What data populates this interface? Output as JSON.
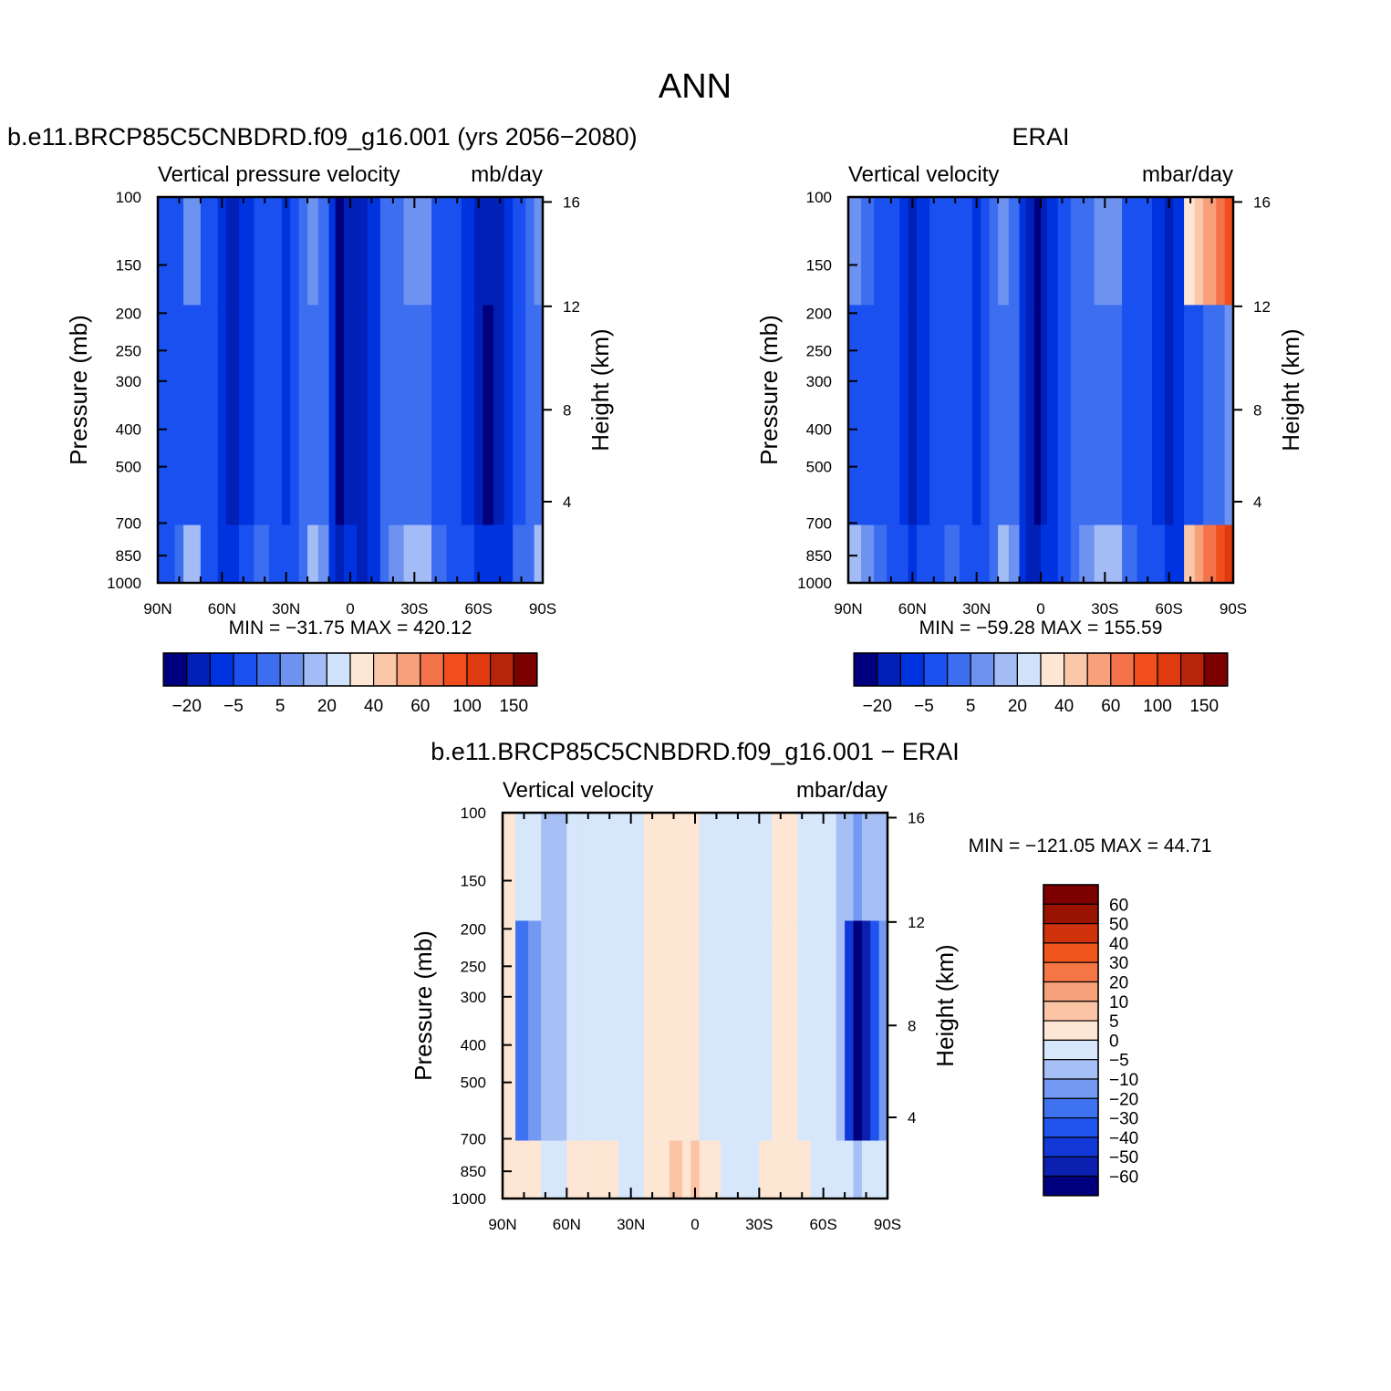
{
  "figure": {
    "main_title": "ANN",
    "colors": {
      "main_scale": [
        "#00007f",
        "#0020b8",
        "#0033e0",
        "#1a50f0",
        "#3d6ef0",
        "#6d92f0",
        "#a3bcf5",
        "#d1e2fb",
        "#fde6d3",
        "#fbc7a9",
        "#f7a07a",
        "#f4734a",
        "#f04e1c",
        "#e03a10",
        "#b8240a",
        "#7d0000"
      ],
      "diff_scale": [
        "#00007f",
        "#0b1fb0",
        "#1238d8",
        "#1f55ee",
        "#3f72f0",
        "#7399f2",
        "#a6c0f6",
        "#d6e6fb",
        "#fde6d3",
        "#fbc4a4",
        "#f6a07a",
        "#f47645",
        "#f0561b",
        "#d0330c",
        "#9a1300",
        "#7d0000"
      ]
    }
  },
  "chart_data": [
    {
      "type": "heatmap",
      "id": "model",
      "title": "b.e11.BRCP85C5CNBDRD.f09_g16.001 (yrs 2056−2080)",
      "subtitle_left": "Vertical pressure velocity",
      "subtitle_right": "mb/day",
      "ylabel": "Pressure (mb)",
      "ylabel_right": "Height (km)",
      "x_ticks": [
        "90N",
        "60N",
        "30N",
        "0",
        "30S",
        "60S",
        "90S"
      ],
      "y_ticks": [
        "100",
        "150",
        "200",
        "250",
        "300",
        "400",
        "500",
        "700",
        "850",
        "1000"
      ],
      "y_right_ticks": [
        "16",
        "12",
        "8",
        "4"
      ],
      "stats": "MIN = −31.75   MAX = 420.12",
      "min": -31.75,
      "max": 420.12,
      "colorbar_labels": [
        "−20",
        "−5",
        "5",
        "20",
        "40",
        "60",
        "100",
        "150"
      ],
      "columns": [
        {
          "lat": 90,
          "lo": 3,
          "hi": 3
        },
        {
          "lat": 82,
          "lo": 3,
          "hi": 4
        },
        {
          "lat": 78,
          "lo": 3,
          "hi": 6
        },
        {
          "lat": 70,
          "lo": 3,
          "hi": 3
        },
        {
          "lat": 65,
          "lo": 3,
          "hi": 3
        },
        {
          "lat": 62,
          "lo": 2,
          "hi": 2
        },
        {
          "lat": 58,
          "lo": 1,
          "hi": 2
        },
        {
          "lat": 52,
          "lo": 2,
          "hi": 3
        },
        {
          "lat": 45,
          "lo": 3,
          "hi": 4
        },
        {
          "lat": 38,
          "lo": 3,
          "hi": 3
        },
        {
          "lat": 32,
          "lo": 2,
          "hi": 3
        },
        {
          "lat": 28,
          "lo": 3,
          "hi": 3
        },
        {
          "lat": 24,
          "lo": 4,
          "hi": 4
        },
        {
          "lat": 20,
          "lo": 4,
          "hi": 6
        },
        {
          "lat": 15,
          "lo": 4,
          "hi": 5
        },
        {
          "lat": 10,
          "lo": 2,
          "hi": 2
        },
        {
          "lat": 7,
          "lo": 0,
          "hi": 1
        },
        {
          "lat": 3,
          "lo": 1,
          "hi": 2
        },
        {
          "lat": 0,
          "lo": 1,
          "hi": 2
        },
        {
          "lat": -3,
          "lo": 1,
          "hi": 1
        },
        {
          "lat": -8,
          "lo": 2,
          "hi": 2
        },
        {
          "lat": -14,
          "lo": 4,
          "hi": 4
        },
        {
          "lat": -18,
          "lo": 4,
          "hi": 5
        },
        {
          "lat": -25,
          "lo": 4,
          "hi": 6
        },
        {
          "lat": -32,
          "lo": 4,
          "hi": 6
        },
        {
          "lat": -38,
          "lo": 3,
          "hi": 4
        },
        {
          "lat": -45,
          "lo": 3,
          "hi": 3
        },
        {
          "lat": -52,
          "lo": 2,
          "hi": 3
        },
        {
          "lat": -58,
          "lo": 1,
          "hi": 2
        },
        {
          "lat": -62,
          "lo": 0,
          "hi": 2
        },
        {
          "lat": -67,
          "lo": 1,
          "hi": 2
        },
        {
          "lat": -72,
          "lo": 2,
          "hi": 2
        },
        {
          "lat": -76,
          "lo": 3,
          "hi": 4
        },
        {
          "lat": -82,
          "lo": 4,
          "hi": 4
        },
        {
          "lat": -86,
          "lo": 4,
          "hi": 6
        },
        {
          "lat": -90,
          "lo": 3,
          "hi": 4
        }
      ]
    },
    {
      "type": "heatmap",
      "id": "erai",
      "title": "ERAI",
      "subtitle_left": "Vertical velocity",
      "subtitle_right": "mbar/day",
      "ylabel": "Pressure (mb)",
      "ylabel_right": "Height (km)",
      "x_ticks": [
        "90N",
        "60N",
        "30N",
        "0",
        "30S",
        "60S",
        "90S"
      ],
      "y_ticks": [
        "100",
        "150",
        "200",
        "250",
        "300",
        "400",
        "500",
        "700",
        "850",
        "1000"
      ],
      "y_right_ticks": [
        "16",
        "12",
        "8",
        "4"
      ],
      "stats": "MIN = −59.28   MAX = 155.59",
      "min": -59.28,
      "max": 155.59,
      "colorbar_labels": [
        "−20",
        "−5",
        "5",
        "20",
        "40",
        "60",
        "100",
        "150"
      ],
      "columns": [
        {
          "lat": 90,
          "lo": 3,
          "hi": 6
        },
        {
          "lat": 84,
          "lo": 3,
          "hi": 5
        },
        {
          "lat": 78,
          "lo": 3,
          "hi": 4
        },
        {
          "lat": 72,
          "lo": 3,
          "hi": 3
        },
        {
          "lat": 66,
          "lo": 2,
          "hi": 3
        },
        {
          "lat": 62,
          "lo": 1,
          "hi": 2
        },
        {
          "lat": 58,
          "lo": 2,
          "hi": 3
        },
        {
          "lat": 52,
          "lo": 3,
          "hi": 3
        },
        {
          "lat": 45,
          "lo": 3,
          "hi": 4
        },
        {
          "lat": 38,
          "lo": 3,
          "hi": 3
        },
        {
          "lat": 32,
          "lo": 2,
          "hi": 3
        },
        {
          "lat": 28,
          "lo": 3,
          "hi": 3
        },
        {
          "lat": 24,
          "lo": 4,
          "hi": 4
        },
        {
          "lat": 20,
          "lo": 4,
          "hi": 6
        },
        {
          "lat": 15,
          "lo": 4,
          "hi": 5
        },
        {
          "lat": 10,
          "lo": 2,
          "hi": 2
        },
        {
          "lat": 7,
          "lo": 1,
          "hi": 1
        },
        {
          "lat": 3,
          "lo": 0,
          "hi": 1
        },
        {
          "lat": 0,
          "lo": 1,
          "hi": 2
        },
        {
          "lat": -3,
          "lo": 2,
          "hi": 2
        },
        {
          "lat": -8,
          "lo": 3,
          "hi": 3
        },
        {
          "lat": -14,
          "lo": 4,
          "hi": 4
        },
        {
          "lat": -18,
          "lo": 4,
          "hi": 5
        },
        {
          "lat": -25,
          "lo": 4,
          "hi": 6
        },
        {
          "lat": -32,
          "lo": 4,
          "hi": 6
        },
        {
          "lat": -38,
          "lo": 3,
          "hi": 4
        },
        {
          "lat": -45,
          "lo": 3,
          "hi": 3
        },
        {
          "lat": -52,
          "lo": 2,
          "hi": 3
        },
        {
          "lat": -58,
          "lo": 1,
          "hi": 2
        },
        {
          "lat": -62,
          "lo": 2,
          "hi": 2
        },
        {
          "lat": -67,
          "lo": 3,
          "hi": 9
        },
        {
          "lat": -72,
          "lo": 3,
          "hi": 10
        },
        {
          "lat": -76,
          "lo": 4,
          "hi": 11
        },
        {
          "lat": -82,
          "lo": 4,
          "hi": 12
        },
        {
          "lat": -86,
          "lo": 5,
          "hi": 13
        },
        {
          "lat": -90,
          "lo": 4,
          "hi": 11
        }
      ]
    },
    {
      "type": "heatmap",
      "id": "difference",
      "title": "b.e11.BRCP85C5CNBDRD.f09_g16.001 − ERAI",
      "subtitle_left": "Vertical velocity",
      "subtitle_right": "mbar/day",
      "ylabel": "Pressure (mb)",
      "ylabel_right": "Height (km)",
      "x_ticks": [
        "90N",
        "60N",
        "30N",
        "0",
        "30S",
        "60S",
        "90S"
      ],
      "y_ticks": [
        "100",
        "150",
        "200",
        "250",
        "300",
        "400",
        "500",
        "700",
        "850",
        "1000"
      ],
      "y_right_ticks": [
        "16",
        "12",
        "8",
        "4"
      ],
      "stats": "MIN = −121.05   MAX =   44.71",
      "min": -121.05,
      "max": 44.71,
      "colorbar_labels": [
        "60",
        "50",
        "40",
        "30",
        "20",
        "10",
        "5",
        "0",
        "−5",
        "−10",
        "−20",
        "−30",
        "−40",
        "−50",
        "−60"
      ],
      "columns": [
        {
          "lat": 90,
          "lo": 8,
          "hi": 8
        },
        {
          "lat": 84,
          "lo": 4,
          "hi": 8
        },
        {
          "lat": 78,
          "lo": 5,
          "hi": 8
        },
        {
          "lat": 72,
          "lo": 6,
          "hi": 7
        },
        {
          "lat": 66,
          "lo": 6,
          "hi": 7
        },
        {
          "lat": 60,
          "lo": 7,
          "hi": 8
        },
        {
          "lat": 54,
          "lo": 7,
          "hi": 8
        },
        {
          "lat": 48,
          "lo": 7,
          "hi": 8
        },
        {
          "lat": 42,
          "lo": 7,
          "hi": 8
        },
        {
          "lat": 36,
          "lo": 7,
          "hi": 7
        },
        {
          "lat": 30,
          "lo": 7,
          "hi": 7
        },
        {
          "lat": 24,
          "lo": 8,
          "hi": 8
        },
        {
          "lat": 18,
          "lo": 8,
          "hi": 8
        },
        {
          "lat": 12,
          "lo": 8,
          "hi": 9
        },
        {
          "lat": 6,
          "lo": 8,
          "hi": 8
        },
        {
          "lat": 2,
          "lo": 8,
          "hi": 9
        },
        {
          "lat": -2,
          "lo": 7,
          "hi": 8
        },
        {
          "lat": -6,
          "lo": 7,
          "hi": 8
        },
        {
          "lat": -12,
          "lo": 7,
          "hi": 7
        },
        {
          "lat": -18,
          "lo": 7,
          "hi": 7
        },
        {
          "lat": -24,
          "lo": 7,
          "hi": 7
        },
        {
          "lat": -30,
          "lo": 7,
          "hi": 8
        },
        {
          "lat": -36,
          "lo": 8,
          "hi": 8
        },
        {
          "lat": -42,
          "lo": 8,
          "hi": 8
        },
        {
          "lat": -48,
          "lo": 7,
          "hi": 8
        },
        {
          "lat": -54,
          "lo": 7,
          "hi": 7
        },
        {
          "lat": -60,
          "lo": 7,
          "hi": 7
        },
        {
          "lat": -66,
          "lo": 6,
          "hi": 7
        },
        {
          "lat": -70,
          "lo": 2,
          "hi": 7
        },
        {
          "lat": -74,
          "lo": 0,
          "hi": 6
        },
        {
          "lat": -78,
          "lo": 1,
          "hi": 7
        },
        {
          "lat": -82,
          "lo": 3,
          "hi": 7
        },
        {
          "lat": -86,
          "lo": 5,
          "hi": 7
        },
        {
          "lat": -90,
          "lo": 7,
          "hi": 7
        }
      ]
    }
  ]
}
